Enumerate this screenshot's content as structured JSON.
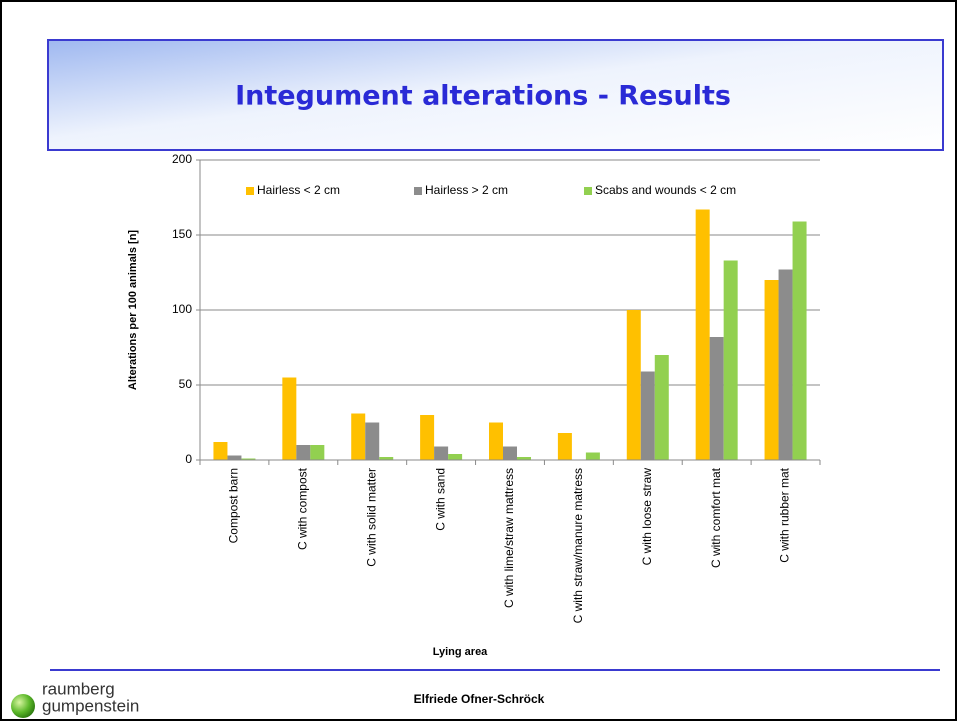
{
  "slide": {
    "title": "Integument alterations - Results",
    "author": "Elfriede Ofner-Schröck",
    "logo": [
      "raumberg",
      "gumpenstein"
    ]
  },
  "chart_data": {
    "type": "bar",
    "categories": [
      "Compost barn",
      "C with compost",
      "C with solid matter",
      "C with sand",
      "C with lime/straw mattress",
      "C with straw/manure matress",
      "C with loose straw",
      "C with comfort mat",
      "C with rubber mat"
    ],
    "series": [
      {
        "name": "Hairless < 2 cm",
        "color": "#FFC000",
        "values": [
          12,
          55,
          31,
          30,
          25,
          18,
          100,
          167,
          120
        ]
      },
      {
        "name": "Hairless > 2 cm",
        "color": "#8C8C8C",
        "values": [
          3,
          10,
          25,
          9,
          9,
          0,
          59,
          82,
          127
        ]
      },
      {
        "name": "Scabs and wounds < 2 cm",
        "color": "#92D050",
        "values": [
          1,
          10,
          2,
          4,
          2,
          5,
          70,
          133,
          159
        ]
      }
    ],
    "y_label": "Alterations per 100 animals [n]",
    "x_label": "Lying area",
    "ylim": [
      0,
      200
    ],
    "yticks": [
      0,
      50,
      100,
      150,
      200
    ],
    "grid": true,
    "legend": "top"
  }
}
